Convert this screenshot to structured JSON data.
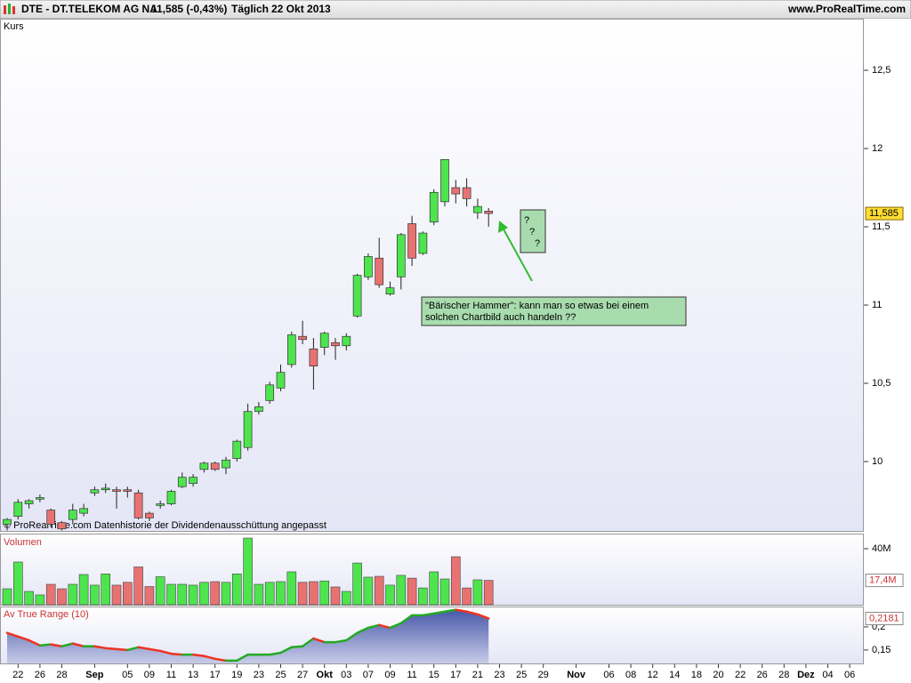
{
  "header": {
    "symbol": "DTE - DT.TELEKOM AG NA",
    "quote": "11,585 (-0,43%)",
    "period": "Täglich",
    "date": "22 Okt 2013",
    "site": "www.ProRealTime.com"
  },
  "chart_data": [
    {
      "type": "candlestick",
      "panel_label": "Kurs",
      "footnote": "© ProRealTime.com  Datenhistorie der Dividendenausschüttung angepasst",
      "categories": [
        null,
        "22",
        null,
        "26",
        null,
        "28",
        null,
        null,
        "Sep",
        null,
        null,
        "05",
        null,
        "09",
        null,
        "11",
        null,
        "13",
        null,
        "17",
        null,
        "19",
        null,
        "23",
        null,
        "25",
        null,
        "27",
        null,
        "Okt",
        null,
        "03",
        null,
        "07",
        null,
        "09",
        null,
        "11",
        null,
        "15",
        null,
        "17",
        null,
        "21",
        null,
        "23",
        null,
        "25",
        null,
        "29",
        null,
        null,
        "Nov",
        null,
        null,
        "06",
        null,
        "08",
        null,
        "12",
        null,
        "14",
        null,
        "18",
        null,
        "20",
        null,
        "22",
        null,
        "26",
        null,
        "28",
        null,
        "Dez",
        null,
        "04",
        null,
        "06"
      ],
      "open": [
        9.6,
        9.65,
        9.73,
        9.76,
        9.69,
        9.61,
        9.63,
        9.67,
        9.8,
        9.82,
        9.82,
        9.82,
        9.8,
        9.67,
        9.72,
        9.73,
        9.84,
        9.86,
        9.95,
        9.99,
        9.96,
        10.02,
        10.09,
        10.32,
        10.39,
        10.47,
        10.62,
        10.8,
        10.72,
        10.73,
        10.76,
        10.74,
        10.93,
        11.18,
        11.3,
        11.07,
        11.18,
        11.52,
        11.33,
        11.53,
        11.66,
        11.75,
        11.75,
        11.59,
        11.6,
        null,
        null,
        null,
        null,
        null,
        null,
        null,
        null,
        null,
        null,
        null,
        null,
        null,
        null,
        null,
        null,
        null,
        null,
        null,
        null,
        null,
        null,
        null,
        null,
        null,
        null,
        null,
        null,
        null,
        null,
        null,
        null,
        null
      ],
      "high": [
        9.64,
        9.76,
        9.76,
        9.79,
        9.7,
        9.62,
        9.73,
        9.73,
        9.84,
        9.86,
        9.84,
        9.84,
        9.82,
        9.68,
        9.75,
        9.82,
        9.93,
        9.92,
        10.0,
        10.0,
        10.03,
        10.14,
        10.37,
        10.38,
        10.51,
        10.62,
        10.83,
        10.9,
        10.79,
        10.83,
        10.79,
        10.82,
        11.2,
        11.33,
        11.43,
        11.15,
        11.46,
        11.57,
        11.47,
        11.74,
        11.93,
        11.8,
        11.81,
        11.68,
        11.62,
        null,
        null,
        null,
        null,
        null,
        null,
        null,
        null,
        null,
        null,
        null,
        null,
        null,
        null,
        null,
        null,
        null,
        null,
        null,
        null,
        null,
        null,
        null,
        null,
        null,
        null,
        null,
        null,
        null,
        null,
        null,
        null,
        null
      ],
      "low": [
        9.56,
        9.63,
        9.7,
        9.74,
        9.58,
        9.56,
        9.6,
        9.65,
        9.78,
        9.8,
        9.7,
        9.77,
        9.63,
        9.62,
        9.7,
        9.72,
        9.83,
        9.84,
        9.93,
        9.94,
        9.92,
        10.0,
        10.07,
        10.3,
        10.37,
        10.45,
        10.6,
        10.75,
        10.46,
        10.68,
        10.65,
        10.71,
        10.92,
        11.16,
        11.11,
        11.06,
        11.1,
        11.25,
        11.32,
        11.51,
        11.63,
        11.65,
        11.63,
        11.55,
        11.5,
        null,
        null,
        null,
        null,
        null,
        null,
        null,
        null,
        null,
        null,
        null,
        null,
        null,
        null,
        null,
        null,
        null,
        null,
        null,
        null,
        null,
        null,
        null,
        null,
        null,
        null,
        null,
        null,
        null,
        null,
        null,
        null,
        null
      ],
      "close": [
        9.63,
        9.74,
        9.75,
        9.77,
        9.6,
        9.57,
        9.69,
        9.7,
        9.82,
        9.83,
        9.81,
        9.81,
        9.64,
        9.64,
        9.73,
        9.81,
        9.9,
        9.9,
        9.99,
        9.95,
        10.01,
        10.13,
        10.32,
        10.35,
        10.49,
        10.57,
        10.81,
        10.78,
        10.61,
        10.82,
        10.74,
        10.8,
        11.19,
        11.31,
        11.13,
        11.11,
        11.45,
        11.3,
        11.46,
        11.72,
        11.93,
        11.71,
        11.68,
        11.63,
        11.585,
        null,
        null,
        null,
        null,
        null,
        null,
        null,
        null,
        null,
        null,
        null,
        null,
        null,
        null,
        null,
        null,
        null,
        null,
        null,
        null,
        null,
        null,
        null,
        null,
        null,
        null,
        null,
        null,
        null,
        null,
        null,
        null,
        null
      ],
      "up_color": "#4ee44e",
      "down_color": "#e87272",
      "ylim": [
        9.557,
        12.824
      ],
      "yticks": [
        10,
        {
          "value": 10.5,
          "label": "10,5"
        },
        11,
        {
          "value": 11.5,
          "label": "11,5"
        },
        12,
        {
          "value": 12.5,
          "label": "12,5"
        }
      ],
      "last_value": {
        "value": 11.585,
        "label": "11,585"
      },
      "annotations": [
        {
          "lines": [
            "\"Bärischer Hammer\": kann man so etwas bei einem",
            "solchen Chartbild auch handeln ??"
          ]
        },
        {
          "lines": [
            "?",
            "?",
            "?"
          ]
        }
      ]
    },
    {
      "type": "bar",
      "panel_label": "Volumen",
      "values": [
        11.4,
        30.5,
        9.5,
        7,
        14.6,
        11.4,
        14.6,
        21.6,
        14,
        22,
        14,
        16,
        27,
        13,
        20,
        14.6,
        14.6,
        14,
        16,
        16.5,
        16,
        22,
        47.6,
        14.6,
        16,
        16.5,
        23.5,
        16,
        16.5,
        17,
        12.7,
        9.5,
        29.8,
        19.7,
        20.3,
        14,
        21,
        19,
        12,
        23.5,
        18.4,
        34.3,
        12,
        17.8,
        17.4,
        null,
        null,
        null,
        null,
        null,
        null,
        null,
        null,
        null,
        null,
        null,
        null,
        null,
        null,
        null,
        null,
        null,
        null,
        null,
        null,
        null,
        null,
        null,
        null,
        null,
        null,
        null,
        null,
        null,
        null,
        null,
        null,
        null
      ],
      "ylim": [
        0,
        50.8
      ],
      "yticks": [
        {
          "value": 40,
          "label": "40M"
        }
      ],
      "last_value": {
        "value": 17.4,
        "label": "17,4M"
      }
    },
    {
      "type": "area",
      "panel_label": "Av True Range (10)",
      "values": [
        0.187,
        0.179,
        0.171,
        0.16,
        0.162,
        0.158,
        0.164,
        0.158,
        0.158,
        0.154,
        0.152,
        0.15,
        0.156,
        0.152,
        0.148,
        0.142,
        0.14,
        0.14,
        0.137,
        0.131,
        0.127,
        0.127,
        0.14,
        0.14,
        0.14,
        0.144,
        0.156,
        0.158,
        0.175,
        0.167,
        0.167,
        0.171,
        0.187,
        0.198,
        0.204,
        0.198,
        0.208,
        0.225,
        0.225,
        0.229,
        0.233,
        0.237,
        0.233,
        0.227,
        0.2181,
        null,
        null,
        null,
        null,
        null,
        null,
        null,
        null,
        null,
        null,
        null,
        null,
        null,
        null,
        null,
        null,
        null,
        null,
        null,
        null,
        null,
        null,
        null,
        null,
        null,
        null,
        null,
        null,
        null,
        null,
        null,
        null,
        null
      ],
      "fill_color": "#5060b0",
      "up_color": "#22aa22",
      "down_color": "#ee3322",
      "ylim": [
        0.121,
        0.244
      ],
      "yticks": [
        {
          "value": 0.15,
          "label": "0,15"
        },
        {
          "value": 0.2,
          "label": "0,2"
        }
      ],
      "last_value": {
        "value": 0.2181,
        "label": "0,2181"
      }
    }
  ]
}
